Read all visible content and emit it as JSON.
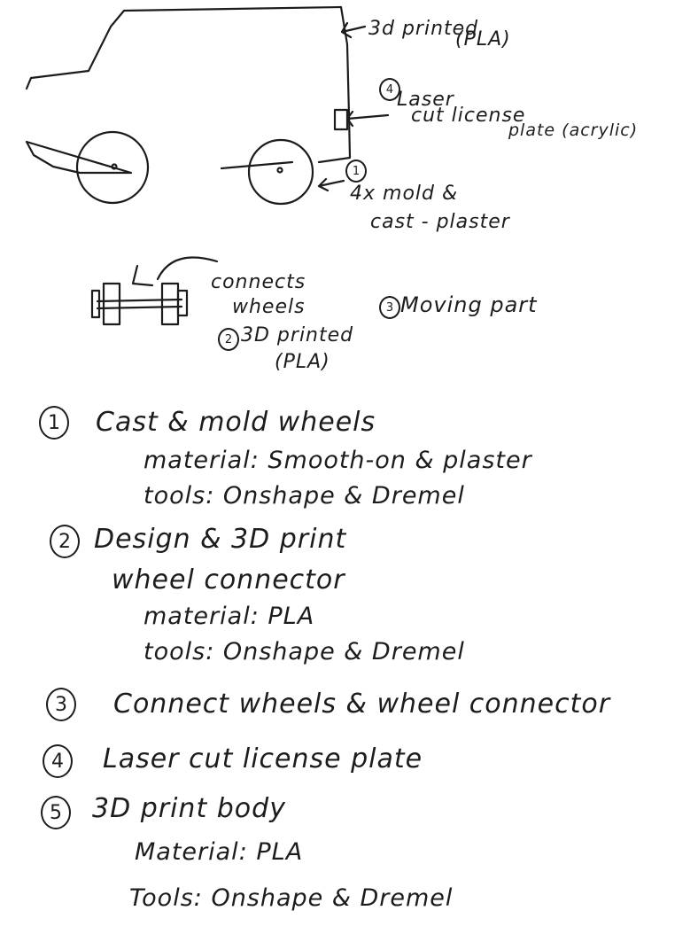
{
  "sketch": {
    "body_label": "3d printed",
    "body_material": "(PLA)",
    "plate_number": "4",
    "plate_label_1": "Laser",
    "plate_label_2": "cut license",
    "plate_label_3": "plate (acrylic)",
    "wheel_number": "1",
    "wheel_label_1": "4x mold &",
    "wheel_label_2": "cast - plaster",
    "axle_label_1": "connects",
    "axle_label_2": "wheels",
    "axle_number": "2",
    "axle_label_3": "3D printed",
    "axle_material": "(PLA)",
    "moving_number": "3",
    "moving_label": "Moving part"
  },
  "steps": [
    {
      "number": "1",
      "title": "Cast & mold wheels",
      "material": "material: Smooth-on & plaster",
      "tools": "tools: Onshape & Dremel"
    },
    {
      "number": "2",
      "title": "Design & 3D print",
      "title_2": "wheel connector",
      "material": "material: PLA",
      "tools": "tools: Onshape & Dremel"
    },
    {
      "number": "3",
      "title": "Connect wheels & wheel connector"
    },
    {
      "number": "4",
      "title": "Laser cut license plate"
    },
    {
      "number": "5",
      "title": "3D print body",
      "material": "Material: PLA",
      "tools": "Tools: Onshape & Dremel"
    }
  ]
}
